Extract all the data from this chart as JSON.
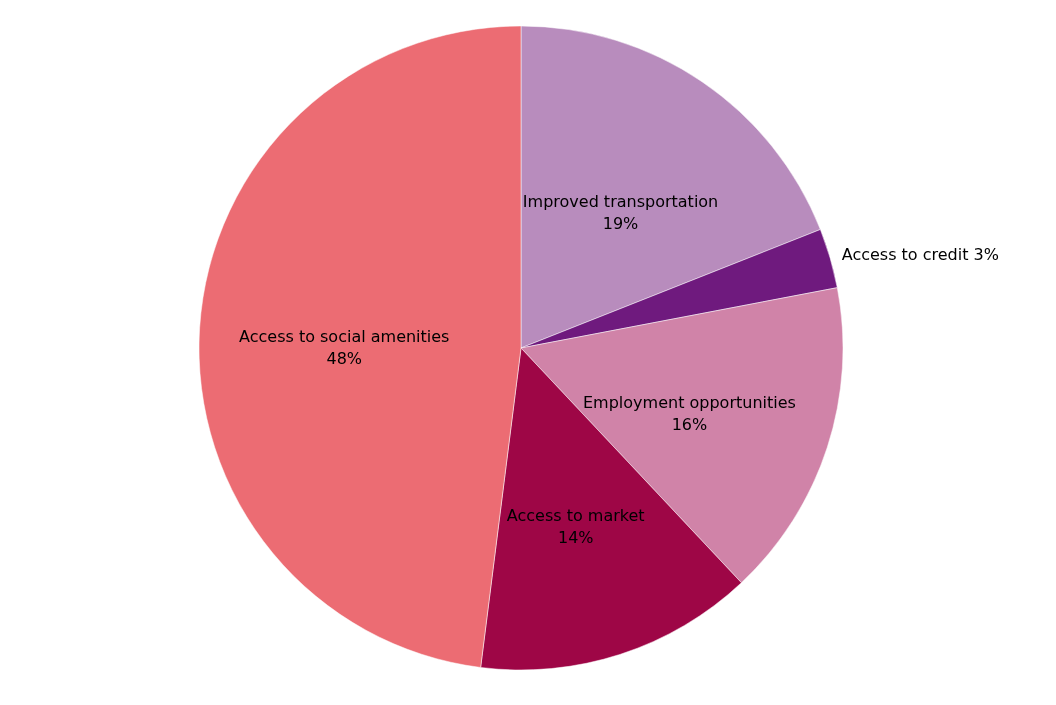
{
  "chart_data": {
    "type": "pie",
    "categories": [
      "Improved transportation",
      "Access to credit",
      "Employment opportunities",
      "Access to market",
      "Access to social amenities"
    ],
    "values": [
      19,
      3,
      16,
      14,
      48
    ],
    "colors": [
      "#b88cbd",
      "#6f1a7e",
      "#d083a8",
      "#9e0646",
      "#ec6c73"
    ],
    "value_labels": [
      "19%",
      "3%",
      "16%",
      "14%",
      "48%"
    ],
    "legend": false
  }
}
